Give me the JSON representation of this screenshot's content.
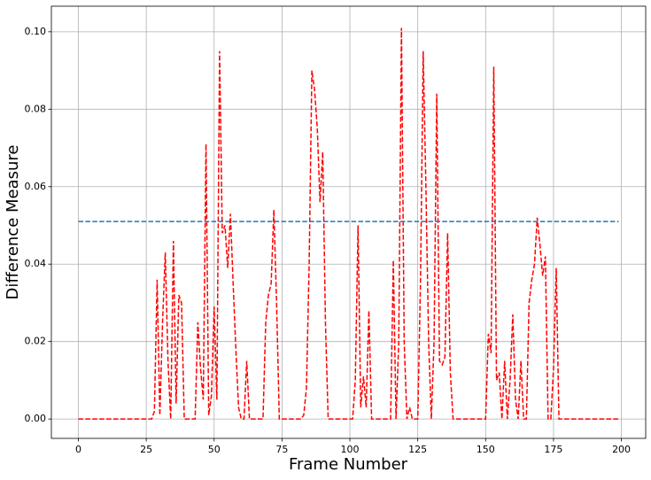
{
  "chart_data": {
    "type": "line",
    "xlabel": "Frame Number",
    "ylabel": "Difference Measure",
    "x": [
      0,
      1,
      2,
      3,
      4,
      5,
      6,
      7,
      8,
      9,
      10,
      11,
      12,
      13,
      14,
      15,
      16,
      17,
      18,
      19,
      20,
      21,
      22,
      23,
      24,
      25,
      26,
      27,
      28,
      29,
      30,
      31,
      32,
      33,
      34,
      35,
      36,
      37,
      38,
      39,
      40,
      41,
      42,
      43,
      44,
      45,
      46,
      47,
      48,
      49,
      50,
      51,
      52,
      53,
      54,
      55,
      56,
      57,
      58,
      59,
      60,
      61,
      62,
      63,
      64,
      65,
      66,
      67,
      68,
      69,
      70,
      71,
      72,
      73,
      74,
      75,
      76,
      77,
      78,
      79,
      80,
      81,
      82,
      83,
      84,
      85,
      86,
      87,
      88,
      89,
      90,
      91,
      92,
      93,
      94,
      95,
      96,
      97,
      98,
      99,
      100,
      101,
      102,
      103,
      104,
      105,
      106,
      107,
      108,
      109,
      110,
      111,
      112,
      113,
      114,
      115,
      116,
      117,
      118,
      119,
      120,
      121,
      122,
      123,
      124,
      125,
      126,
      127,
      128,
      129,
      130,
      131,
      132,
      133,
      134,
      135,
      136,
      137,
      138,
      139,
      140,
      141,
      142,
      143,
      144,
      145,
      146,
      147,
      148,
      149,
      150,
      151,
      152,
      153,
      154,
      155,
      156,
      157,
      158,
      159,
      160,
      161,
      162,
      163,
      164,
      165,
      166,
      167,
      168,
      169,
      170,
      171,
      172,
      173,
      174,
      175,
      176,
      177,
      178,
      179,
      180,
      181,
      182,
      183,
      184,
      185,
      186,
      187,
      188,
      189,
      190,
      191,
      192,
      193,
      194,
      195,
      196,
      197,
      198,
      199
    ],
    "series": [
      {
        "color": "#ff0000",
        "linestyle": "dashed",
        "values": [
          0,
          0,
          0,
          0,
          0,
          0,
          0,
          0,
          0,
          0,
          0,
          0,
          0,
          0,
          0,
          0,
          0,
          0,
          0,
          0,
          0,
          0,
          0,
          0,
          0,
          0,
          0,
          0,
          0.002,
          0.036,
          0.001,
          0.025,
          0.043,
          0.015,
          0,
          0.046,
          0.004,
          0.032,
          0.03,
          0,
          0,
          0,
          0,
          0,
          0.025,
          0.013,
          0.005,
          0.071,
          0.001,
          0.006,
          0.029,
          0.005,
          0.095,
          0.048,
          0.05,
          0.039,
          0.053,
          0.035,
          0.018,
          0.003,
          0,
          0,
          0.015,
          0,
          0,
          0,
          0,
          0,
          0,
          0.025,
          0.032,
          0.035,
          0.054,
          0.03,
          0,
          0,
          0,
          0,
          0,
          0,
          0,
          0,
          0,
          0.001,
          0.008,
          0.04,
          0.09,
          0.085,
          0.075,
          0.056,
          0.069,
          0.025,
          0,
          0,
          0,
          0,
          0,
          0,
          0,
          0,
          0,
          0,
          0.01,
          0.05,
          0.003,
          0.011,
          0.003,
          0.028,
          0,
          0,
          0,
          0,
          0,
          0,
          0,
          0,
          0.041,
          0,
          0.02,
          0.101,
          0.02,
          0,
          0.003,
          0,
          0,
          0,
          0.035,
          0.095,
          0.06,
          0.02,
          0,
          0.02,
          0.084,
          0.015,
          0.014,
          0.016,
          0.048,
          0.012,
          0,
          0,
          0,
          0,
          0,
          0,
          0,
          0,
          0,
          0,
          0,
          0,
          0,
          0.022,
          0.017,
          0.091,
          0.01,
          0.012,
          0,
          0.015,
          0,
          0.01,
          0.027,
          0.005,
          0,
          0.015,
          0,
          0,
          0.03,
          0.036,
          0.04,
          0.052,
          0.045,
          0.037,
          0.042,
          0,
          0,
          0.013,
          0.039,
          0,
          0,
          0,
          0,
          0,
          0,
          0,
          0,
          0,
          0,
          0,
          0,
          0,
          0,
          0,
          0,
          0,
          0,
          0,
          0,
          0,
          0,
          0
        ]
      }
    ],
    "threshold": {
      "y": 0.051,
      "color": "#1f77b4",
      "linestyle": "dashed"
    },
    "xlim": [
      -9.95,
      208.95
    ],
    "ylim": [
      -0.005,
      0.1066
    ],
    "xticks": [
      0,
      25,
      50,
      75,
      100,
      125,
      150,
      175,
      200
    ],
    "yticks": [
      {
        "value": 0,
        "label": "0.00"
      },
      0.02,
      0.04,
      0.06,
      0.08,
      {
        "value": 0.1,
        "label": "0.10"
      }
    ],
    "grid": true
  }
}
